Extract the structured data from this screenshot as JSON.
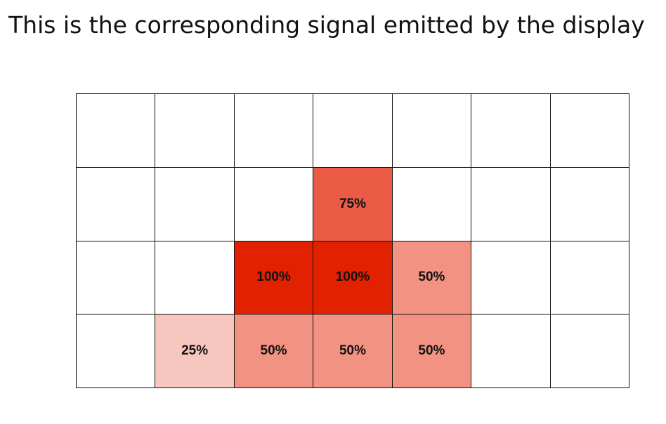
{
  "title": "This is the corresponding signal emitted by the display",
  "grid": {
    "columns": 7,
    "rows": 4,
    "cells": [
      [
        null,
        null,
        null,
        null,
        null,
        null,
        null
      ],
      [
        null,
        null,
        null,
        "75%",
        null,
        null,
        null
      ],
      [
        null,
        null,
        "100%",
        "100%",
        "50%",
        null,
        null
      ],
      [
        null,
        "25%",
        "50%",
        "50%",
        "50%",
        null,
        null
      ]
    ],
    "colors": {
      "25%": "#f7c6bf",
      "50%": "#f19282",
      "75%": "#ea5a45",
      "100%": "#e12100"
    }
  }
}
